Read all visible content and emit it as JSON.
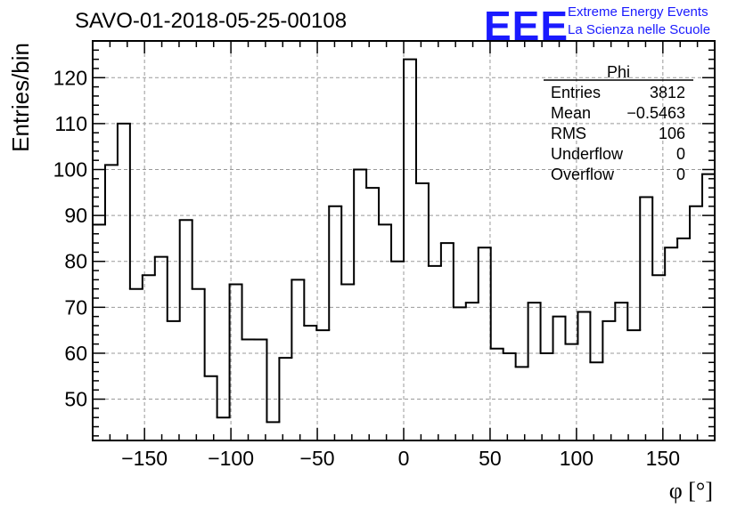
{
  "header": {
    "title": "SAVO-01-2018-05-25-00108",
    "logo_text": "EEE",
    "logo_line1": "Extreme Energy Events",
    "logo_line2": "La Scienza nelle Scuole",
    "logo_color": "#1a1aff"
  },
  "stats": {
    "name": "Phi",
    "rows": [
      {
        "label": "Entries",
        "value": "3812"
      },
      {
        "label": "Mean",
        "value": "−0.5463"
      },
      {
        "label": "RMS",
        "value": "106"
      },
      {
        "label": "Underflow",
        "value": "0"
      },
      {
        "label": "Overflow",
        "value": "0"
      }
    ]
  },
  "chart_data": {
    "type": "bar",
    "style": "step-histogram",
    "xlabel": "φ [°]",
    "ylabel": "Entries/bin",
    "xlim": [
      -180,
      180
    ],
    "ylim": [
      41,
      128
    ],
    "grid": true,
    "bin_width": 7.2,
    "x_ticks": [
      -150,
      -100,
      -50,
      0,
      50,
      100,
      150
    ],
    "x_tick_labels": [
      "−150",
      "−100",
      "−50",
      "0",
      "50",
      "100",
      "150"
    ],
    "y_ticks": [
      50,
      60,
      70,
      80,
      90,
      100,
      110,
      120
    ],
    "y_tick_labels": [
      "50",
      "60",
      "70",
      "80",
      "90",
      "100",
      "110",
      "120"
    ],
    "values": [
      88,
      101,
      110,
      74,
      77,
      81,
      67,
      89,
      74,
      55,
      46,
      75,
      63,
      63,
      45,
      59,
      76,
      66,
      65,
      92,
      75,
      100,
      96,
      88,
      80,
      124,
      97,
      79,
      84,
      70,
      71,
      83,
      61,
      60,
      57,
      71,
      60,
      68,
      62,
      69,
      58,
      67,
      71,
      65,
      94,
      77,
      83,
      85,
      92,
      99
    ]
  }
}
